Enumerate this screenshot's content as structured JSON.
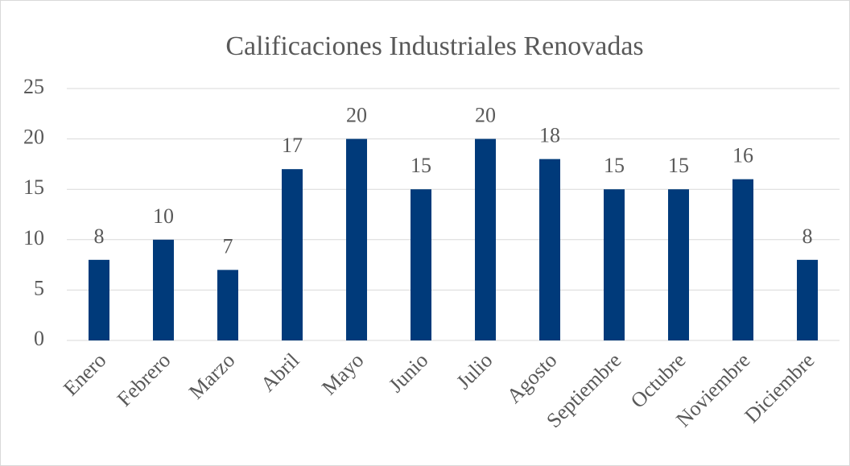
{
  "chart_data": {
    "type": "bar",
    "title": "Calificaciones Industriales Renovadas",
    "categories": [
      "Enero",
      "Febrero",
      "Marzo",
      "Abril",
      "Mayo",
      "Junio",
      "Julio",
      "Agosto",
      "Septiembre",
      "Octubre",
      "Noviembre",
      "Diciembre"
    ],
    "values": [
      8,
      10,
      7,
      17,
      20,
      15,
      20,
      18,
      15,
      15,
      16,
      8
    ],
    "color": "#003a7a",
    "ylim": [
      0,
      25
    ],
    "yticks": [
      0,
      5,
      10,
      15,
      20,
      25
    ],
    "grid": true,
    "data_labels": true
  }
}
